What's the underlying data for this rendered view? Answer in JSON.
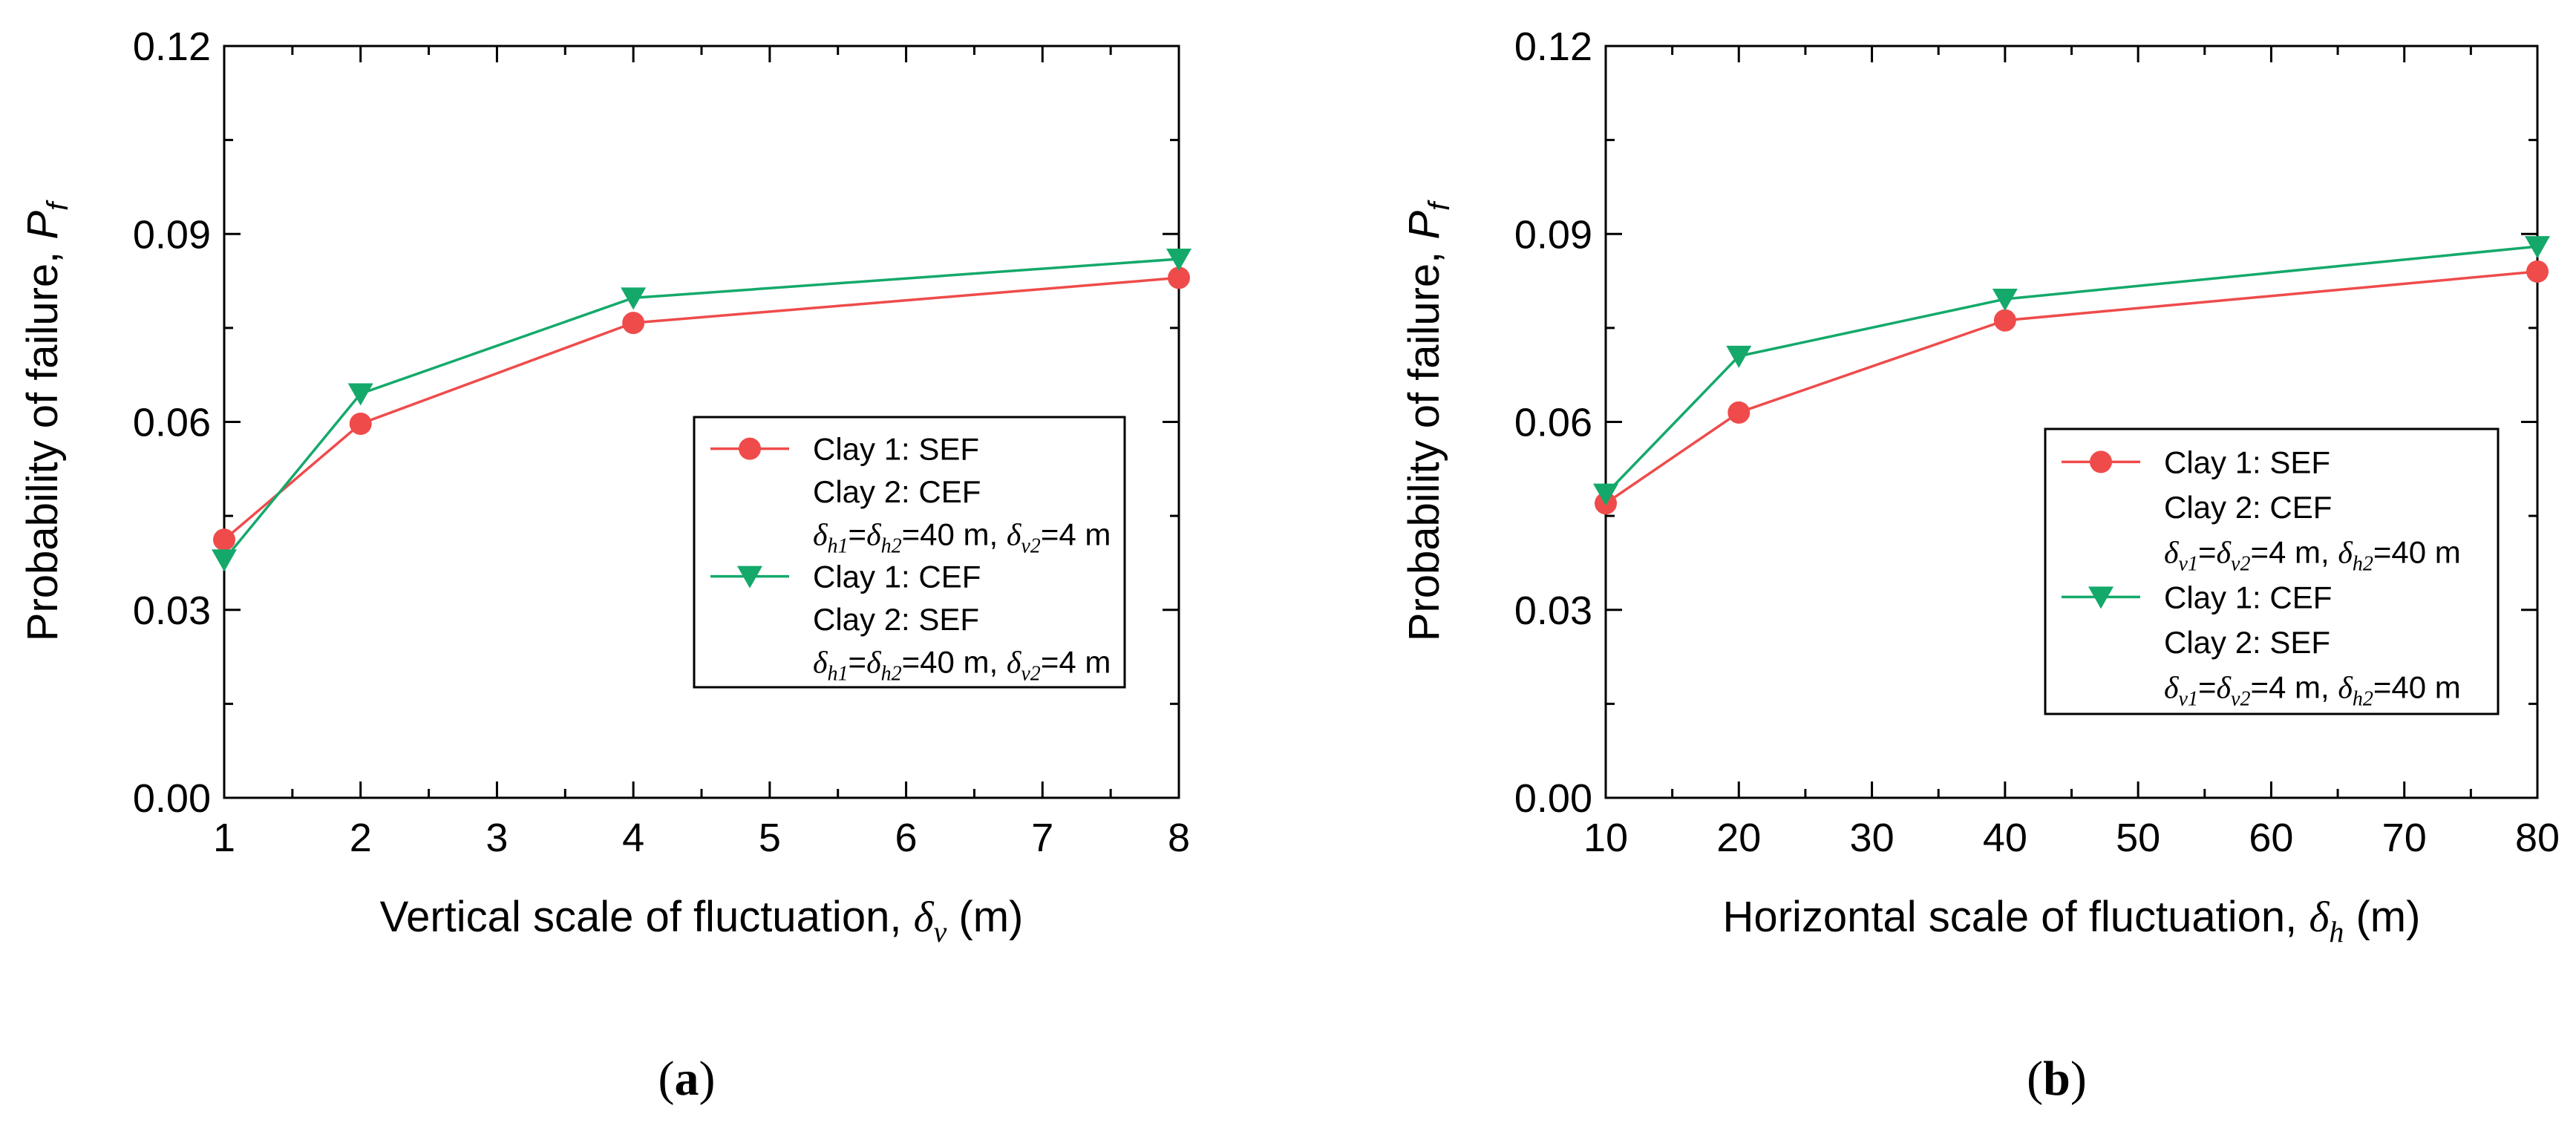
{
  "colors": {
    "red": "#EF4B4B",
    "green": "#14A96B",
    "axis": "#000000"
  },
  "chart_data": [
    {
      "type": "line",
      "panel_label": "a",
      "xlabel": {
        "text": "Vertical scale of fluctuation, ",
        "symbol": "δ",
        "sub": "v",
        "unit": " (m)"
      },
      "ylabel": {
        "text": "Probability of failure, ",
        "symbol": "P",
        "sub": "f"
      },
      "x": [
        1,
        2,
        4,
        8
      ],
      "xlim": [
        1,
        8
      ],
      "xticks": [
        1,
        2,
        3,
        4,
        5,
        6,
        7,
        8
      ],
      "xtick_labels": [
        "1",
        "2",
        "3",
        "4",
        "5",
        "6",
        "7",
        "8"
      ],
      "ylim": [
        0,
        0.12
      ],
      "yticks": [
        0,
        0.03,
        0.06,
        0.09,
        0.12
      ],
      "ytick_labels": [
        "0.00",
        "0.03",
        "0.06",
        "0.09",
        "0.12"
      ],
      "legend_position": "center-right",
      "series": [
        {
          "name": "Clay 1: SEF / Clay 2: CEF",
          "marker": "circle",
          "color": "red",
          "values": [
            0.0412,
            0.0597,
            0.0758,
            0.083
          ],
          "legend_lines": [
            "Clay 1: SEF",
            "Clay 2: CEF"
          ],
          "legend_param": {
            "s1": "h1",
            "s2": "h2",
            "v1": "=40 m, ",
            "s3": "v2",
            "v2": "=4 m"
          }
        },
        {
          "name": "Clay 1: CEF / Clay 2: SEF",
          "marker": "triangle-down",
          "color": "green",
          "values": [
            0.038,
            0.0645,
            0.0798,
            0.086
          ],
          "legend_lines": [
            "Clay 1: CEF",
            "Clay 2: SEF"
          ],
          "legend_param": {
            "s1": "h1",
            "s2": "h2",
            "v1": "=40 m, ",
            "s3": "v2",
            "v2": "=4 m"
          }
        }
      ]
    },
    {
      "type": "line",
      "panel_label": "b",
      "xlabel": {
        "text": "Horizontal scale of fluctuation, ",
        "symbol": "δ",
        "sub": "h",
        "unit": " (m)"
      },
      "ylabel": {
        "text": "Probability of failure, ",
        "symbol": "P",
        "sub": "f"
      },
      "x": [
        10,
        20,
        40,
        80
      ],
      "xlim": [
        10,
        80
      ],
      "xticks": [
        10,
        20,
        30,
        40,
        50,
        60,
        70,
        80
      ],
      "xtick_labels": [
        "10",
        "20",
        "30",
        "40",
        "50",
        "60",
        "70",
        "80"
      ],
      "ylim": [
        0,
        0.12
      ],
      "yticks": [
        0,
        0.03,
        0.06,
        0.09,
        0.12
      ],
      "ytick_labels": [
        "0.00",
        "0.03",
        "0.06",
        "0.09",
        "0.12"
      ],
      "legend_position": "center-right",
      "series": [
        {
          "name": "Clay 1: SEF / Clay 2: CEF",
          "marker": "circle",
          "color": "red",
          "values": [
            0.047,
            0.0615,
            0.0762,
            0.084
          ],
          "legend_lines": [
            "Clay 1: SEF",
            "Clay 2: CEF"
          ],
          "legend_param": {
            "s1": "v1",
            "s2": "v2",
            "v1": "=4 m, ",
            "s3": "h2",
            "v2": "=40 m"
          }
        },
        {
          "name": "Clay 1: CEF / Clay 2: SEF",
          "marker": "triangle-down",
          "color": "green",
          "values": [
            0.0485,
            0.0705,
            0.0796,
            0.088
          ],
          "legend_lines": [
            "Clay 1: CEF",
            "Clay 2: SEF"
          ],
          "legend_param": {
            "s1": "v1",
            "s2": "v2",
            "v1": "=4 m, ",
            "s3": "h2",
            "v2": "=40 m"
          }
        }
      ]
    }
  ]
}
